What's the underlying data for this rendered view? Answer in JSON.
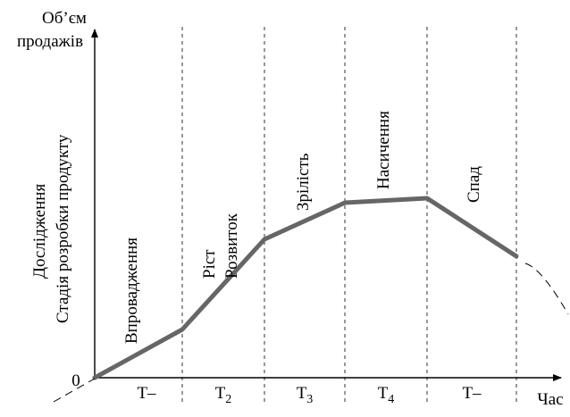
{
  "axes": {
    "y_label_line1": "Об’єм",
    "y_label_line2": "продажів",
    "x_label": "Час",
    "origin": "0"
  },
  "stages": {
    "pre": [
      "Дослідження",
      "Стадія розробки продукту"
    ],
    "s1": [
      "Впровадження"
    ],
    "s2": [
      "Ріст",
      "Розвиток"
    ],
    "s3": [
      "Зрілість"
    ],
    "s4": [
      "Насичення"
    ],
    "s5": [
      "Спад"
    ]
  },
  "periods": [
    {
      "t": "T",
      "sub": "–"
    },
    {
      "t": "T",
      "sub": "2"
    },
    {
      "t": "T",
      "sub": "3"
    },
    {
      "t": "T",
      "sub": "4"
    },
    {
      "t": "T",
      "sub": "–"
    }
  ],
  "colors": {
    "curve": "#666666",
    "axis": "#000000"
  }
}
